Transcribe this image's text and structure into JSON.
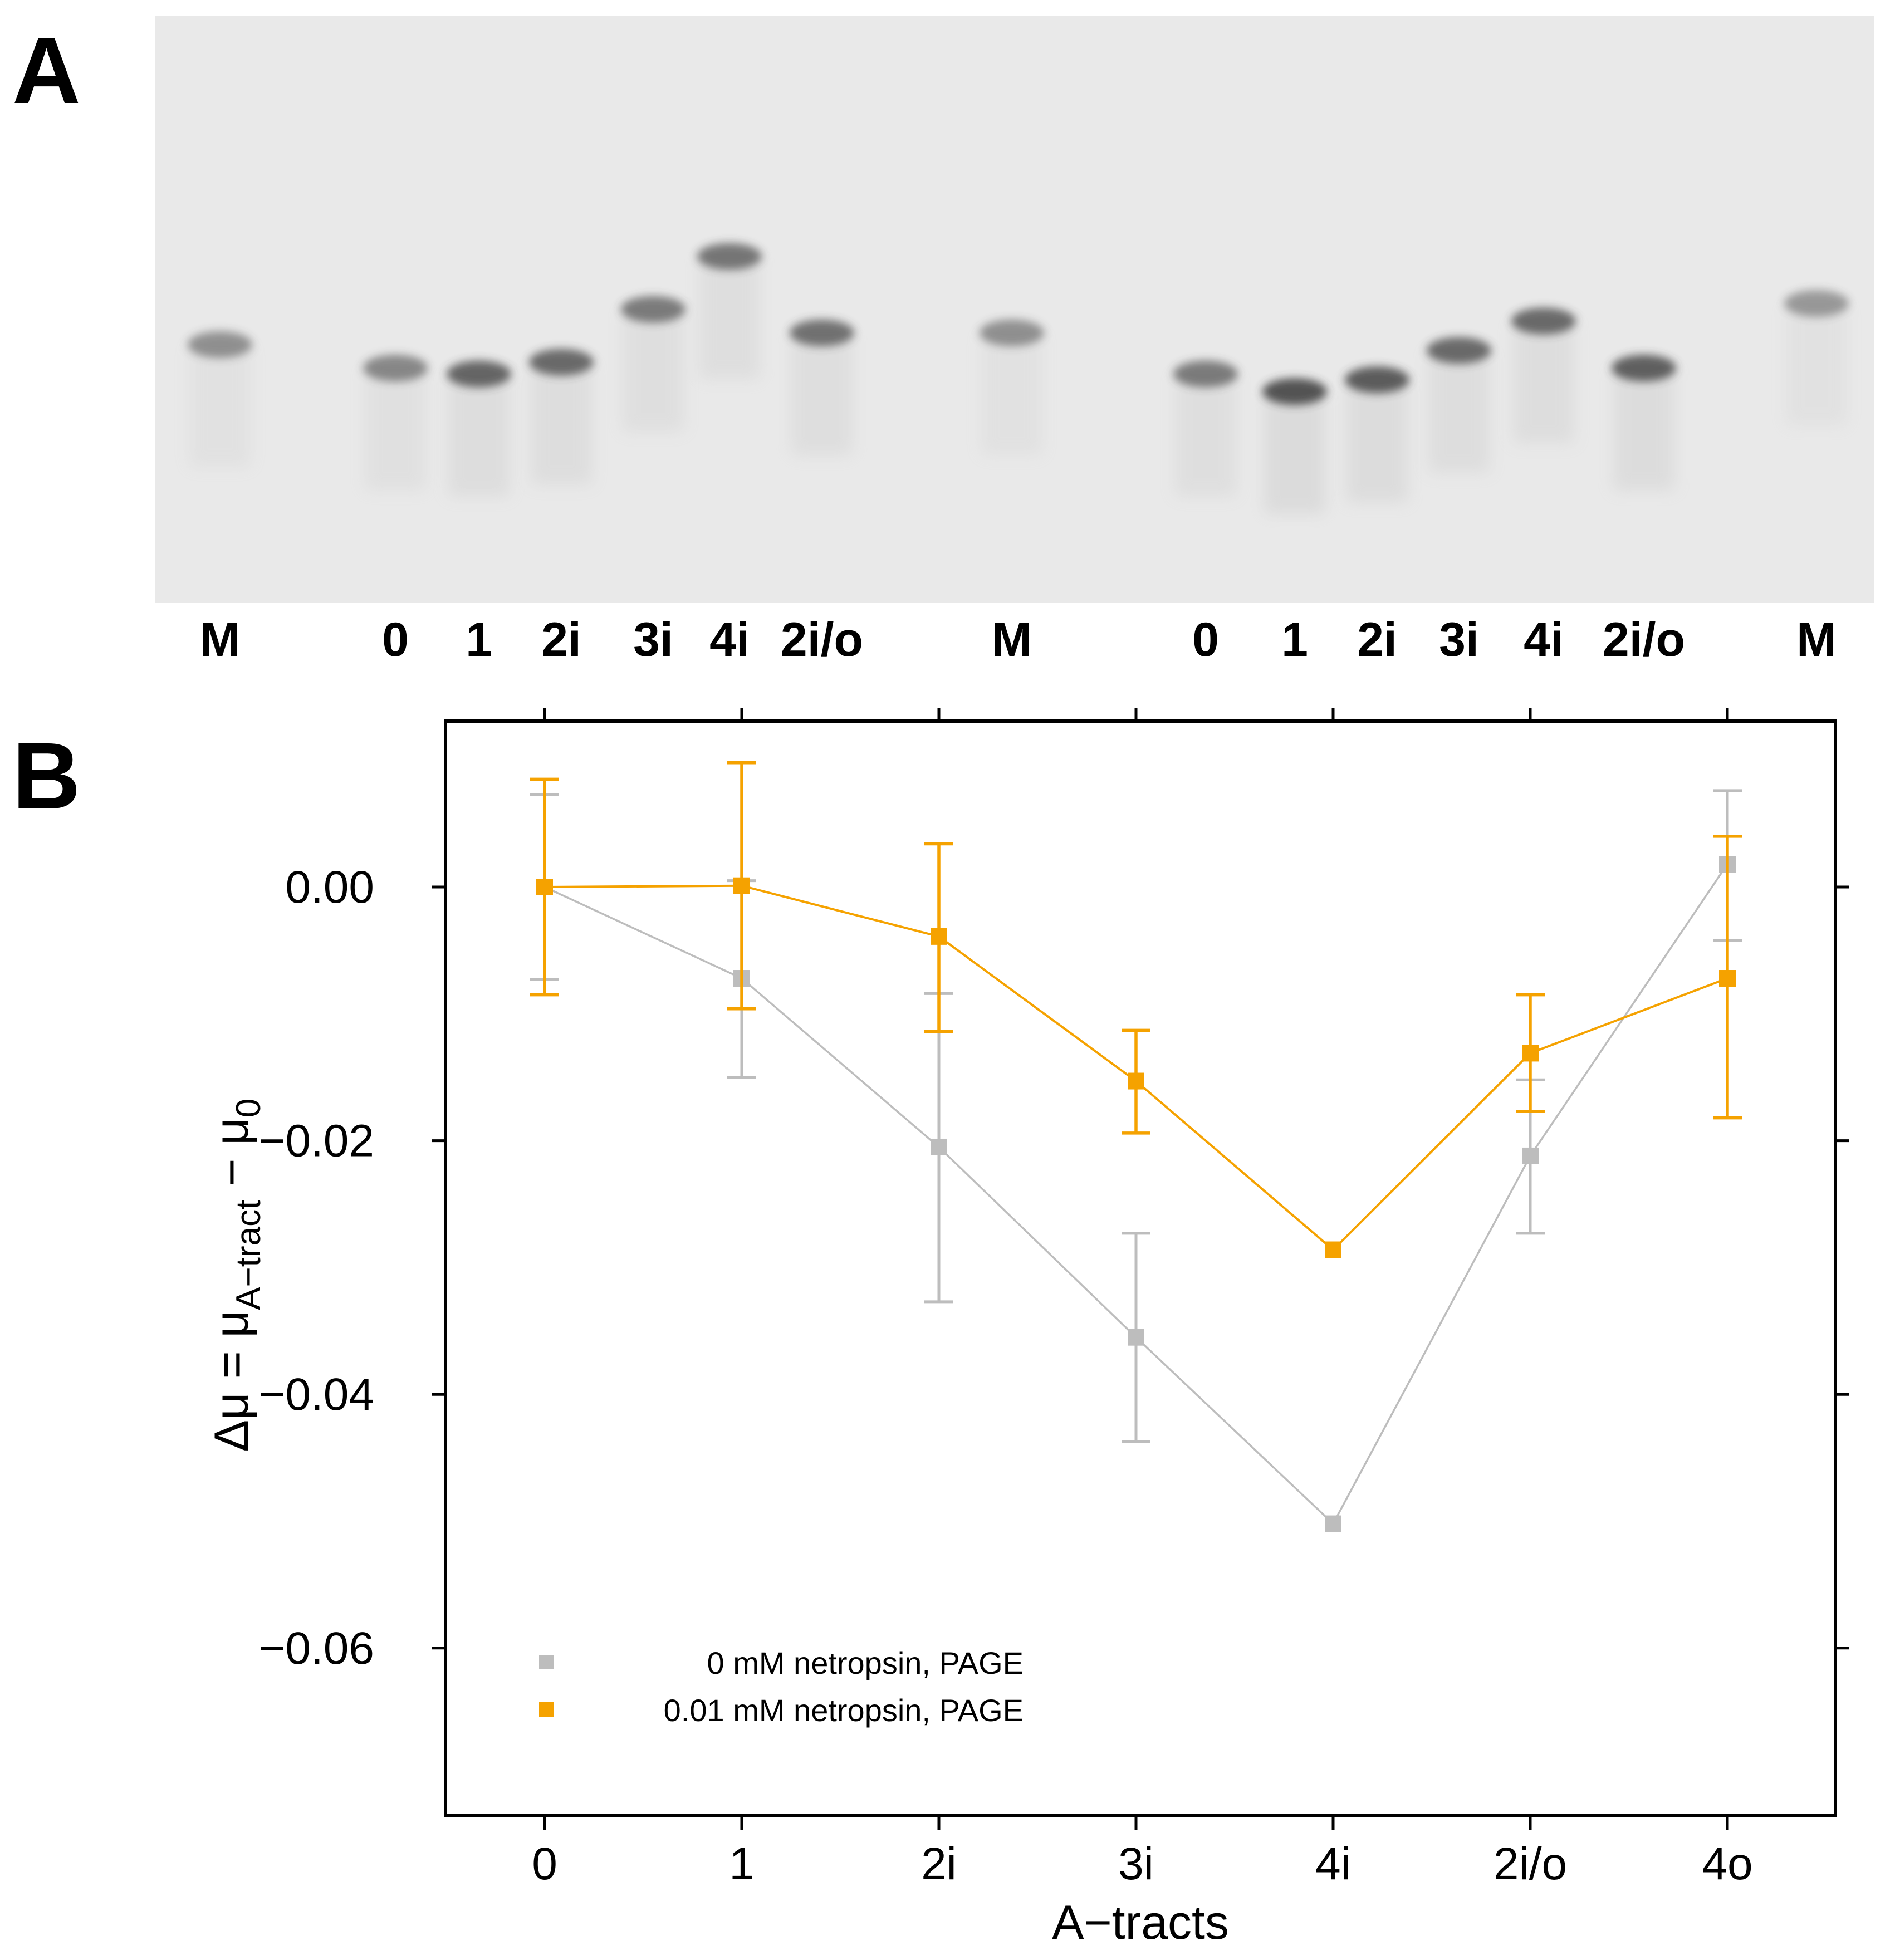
{
  "panels": {
    "a": {
      "letter": "A",
      "lanes": [
        "M",
        "0",
        "1",
        "2i",
        "3i",
        "4i",
        "2i/o",
        "M",
        "0",
        "1",
        "2i",
        "3i",
        "4i",
        "2i/o",
        "M"
      ],
      "band_darkness": [
        0.5,
        0.55,
        0.75,
        0.72,
        0.62,
        0.65,
        0.68,
        0.5,
        0.62,
        0.85,
        0.8,
        0.72,
        0.72,
        0.78,
        0.45
      ],
      "band_relative_migration": [
        0.56,
        0.6,
        0.61,
        0.59,
        0.5,
        0.41,
        0.54,
        0.54,
        0.61,
        0.64,
        0.62,
        0.57,
        0.52,
        0.6,
        0.49
      ]
    },
    "b": {
      "letter": "B"
    }
  },
  "colors": {
    "series0": "#bdbdbd",
    "series1": "#f5a200",
    "gel_bg": "#e9e9e9",
    "band": "#3a3a3a"
  },
  "chart_data": {
    "type": "line",
    "categories": [
      "0",
      "1",
      "2i",
      "3i",
      "4i",
      "2i/o",
      "4o"
    ],
    "xlabel": "A−tracts",
    "ylabel_main": "Δμ = μ",
    "ylabel_sub1": "A−tract",
    "ylabel_mid": " − μ",
    "ylabel_sub2": "0",
    "ylim": [
      -0.073,
      0.013
    ],
    "yticks": [
      0.0,
      -0.02,
      -0.04,
      -0.06
    ],
    "ytick_labels": [
      "0.00",
      "−0.02",
      "−0.04",
      "−0.06"
    ],
    "legend_position": "bottom-left",
    "series": [
      {
        "name": "0 mM netropsin, PAGE",
        "values": [
          0.0,
          -0.0072,
          -0.0205,
          -0.0355,
          -0.0502,
          -0.0212,
          0.0018
        ],
        "err_low": [
          -0.0073,
          -0.015,
          -0.0327,
          -0.0437,
          null,
          -0.0273,
          -0.0042
        ],
        "err_high": [
          0.0073,
          0.0005,
          -0.0084,
          -0.0273,
          null,
          -0.0152,
          0.0076
        ]
      },
      {
        "name": "0.01 mM netropsin, PAGE",
        "values": [
          0.0,
          0.0001,
          -0.0039,
          -0.0153,
          -0.0286,
          -0.0131,
          -0.0072
        ],
        "err_low": [
          -0.0085,
          -0.0096,
          -0.0114,
          -0.0194,
          null,
          -0.0177,
          -0.0182
        ],
        "err_high": [
          0.0085,
          0.0098,
          0.0034,
          -0.0113,
          null,
          -0.0085,
          0.004
        ]
      }
    ]
  }
}
